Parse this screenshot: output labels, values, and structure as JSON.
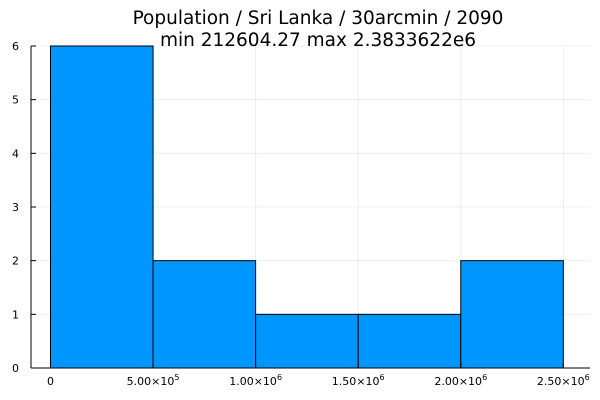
{
  "chart_data": {
    "type": "bar",
    "title": "Population / Sri Lanka / 30arcmin / 2090",
    "subtitle": "min 212604.27  max 2.3833622e6",
    "xlabel": "",
    "ylabel": "",
    "bin_edges": [
      0,
      500000,
      1000000,
      1500000,
      2000000,
      2500000
    ],
    "values": [
      6,
      2,
      1,
      1,
      2
    ],
    "xlim": [
      -95000,
      2630000
    ],
    "ylim": [
      0,
      6
    ],
    "x_ticks": [
      {
        "value": 0,
        "mantissa": "0",
        "exponent": ""
      },
      {
        "value": 500000,
        "mantissa": "5.00×10",
        "exponent": "5"
      },
      {
        "value": 1000000,
        "mantissa": "1.00×10",
        "exponent": "6"
      },
      {
        "value": 1500000,
        "mantissa": "1.50×10",
        "exponent": "6"
      },
      {
        "value": 2000000,
        "mantissa": "2.00×10",
        "exponent": "6"
      },
      {
        "value": 2500000,
        "mantissa": "2.50×10",
        "exponent": "6"
      }
    ],
    "y_ticks": [
      0,
      1,
      2,
      3,
      4,
      5,
      6
    ],
    "grid": true,
    "legend": "none",
    "bar_color": "#0096ff",
    "edge_color": "#000000"
  }
}
